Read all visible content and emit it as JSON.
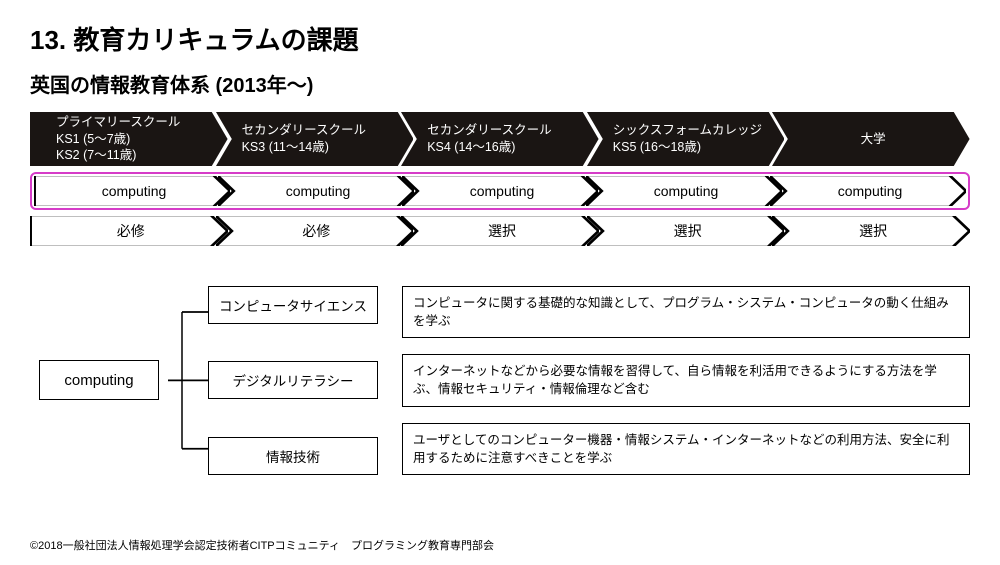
{
  "title": "13. 教育カリキュラムの課題",
  "subtitle": "英国の情報教育体系 (2013年〜)",
  "colors": {
    "dark_fill": "#1a1513",
    "light_fill": "#ffffff",
    "light_stroke": "#000000",
    "highlight_border": "#d63cc8",
    "text_light": "#ffffff",
    "text_dark": "#000000"
  },
  "stages_row": {
    "type": "arrow-flow",
    "style": "dark",
    "cells": [
      {
        "label": "プライマリースクール\nKS1 (5〜7歳)\nKS2 (7〜11歳)"
      },
      {
        "label": "セカンダリースクール\nKS3 (11〜14歳)"
      },
      {
        "label": "セカンダリースクール\nKS4 (14〜16歳)"
      },
      {
        "label": "シックスフォームカレッジ\nKS5 (16〜18歳)"
      },
      {
        "label": "大学"
      }
    ]
  },
  "subject_row": {
    "type": "arrow-flow",
    "style": "light",
    "highlighted": true,
    "cells": [
      {
        "label": "computing"
      },
      {
        "label": "computing"
      },
      {
        "label": "computing"
      },
      {
        "label": "computing"
      },
      {
        "label": "computing"
      }
    ]
  },
  "requirement_row": {
    "type": "arrow-flow",
    "style": "light",
    "cells": [
      {
        "label": "必修"
      },
      {
        "label": "必修"
      },
      {
        "label": "選択"
      },
      {
        "label": "選択"
      },
      {
        "label": "選択"
      }
    ]
  },
  "tree": {
    "root": "computing",
    "branches": [
      {
        "name": "コンピュータサイエンス",
        "desc": "コンピュータに関する基礎的な知識として、プログラム・システム・コンピュータの動く仕組みを学ぶ"
      },
      {
        "name": "デジタルリテラシー",
        "desc": "インターネットなどから必要な情報を習得して、自ら情報を利活用できるようにする方法を学ぶ、情報セキュリティ・情報倫理など含む"
      },
      {
        "name": "情報技術",
        "desc": "ユーザとしてのコンピューター機器・情報システム・インターネットなどの利用方法、安全に利用するために注意すべきことを学ぶ"
      }
    ]
  },
  "footer": "©2018一般社団法人情報処理学会認定技術者CITPコミュニティ　プログラミング教育専門部会"
}
